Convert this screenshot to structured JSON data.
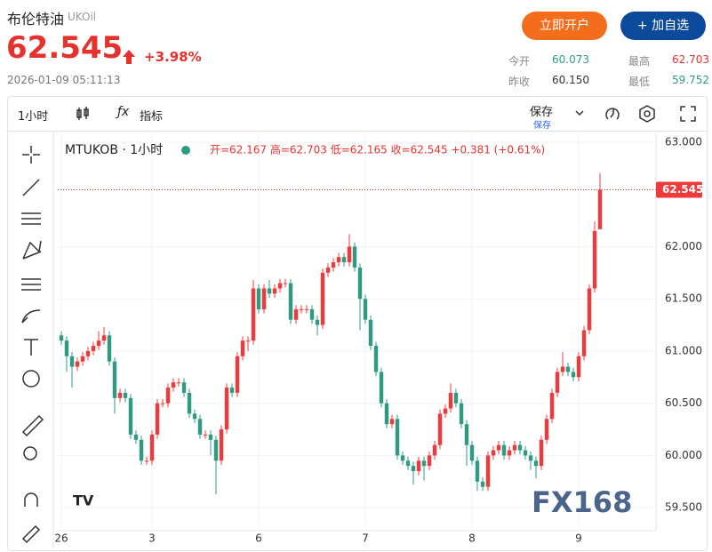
{
  "header": {
    "title": "布伦特油",
    "symbol": "UKOil",
    "price": "62.545",
    "change": "+3.98%",
    "time": "2026-01-09 05:11:13",
    "open_account": "立即开户",
    "add_watch": "加自选",
    "stats": [
      {
        "label": "今开",
        "value": "60.073"
      },
      {
        "label": "最高",
        "value": "62.703"
      },
      {
        "label": "昨收",
        "value": "60.150"
      },
      {
        "label": "最低",
        "value": "59.752"
      }
    ]
  },
  "toolbar": {
    "interval": "1小时",
    "indicators": "指标",
    "save": "保存",
    "save_sub": "保存"
  },
  "chart_data": {
    "type": "candlestick",
    "legend_title": "MTUKOB · 1小时",
    "legend_values": "开=62.167 高=62.703 低=62.165 收=62.545 +0.381 (+0.61%)",
    "watermark": "FX168",
    "up_color": "#f0393b",
    "down_color": "#2f9a84",
    "grid": true,
    "ylim": [
      59.28,
      63.085
    ],
    "yticks": [
      {
        "value": 59.5,
        "label": "59.500"
      },
      {
        "value": 60,
        "label": "60.000"
      },
      {
        "value": 60.5,
        "label": "60.500"
      },
      {
        "value": 61,
        "label": "61.000"
      },
      {
        "value": 61.5,
        "label": "61.500"
      },
      {
        "value": 62,
        "label": "62.000"
      },
      {
        "value": 63,
        "label": "63.000"
      }
    ],
    "categories": [
      "26",
      null,
      null,
      null,
      null,
      null,
      null,
      null,
      null,
      null,
      null,
      null,
      null,
      null,
      null,
      null,
      null,
      "3",
      null,
      null,
      null,
      null,
      null,
      null,
      null,
      null,
      null,
      null,
      null,
      null,
      null,
      null,
      null,
      null,
      null,
      null,
      null,
      "6",
      null,
      null,
      null,
      null,
      null,
      null,
      null,
      null,
      null,
      null,
      null,
      null,
      null,
      null,
      null,
      null,
      null,
      null,
      null,
      "7",
      null,
      null,
      null,
      null,
      null,
      null,
      null,
      null,
      null,
      null,
      null,
      null,
      null,
      null,
      null,
      null,
      null,
      null,
      null,
      "8",
      null,
      null,
      null,
      null,
      null,
      null,
      null,
      null,
      null,
      null,
      null,
      null,
      null,
      null,
      null,
      null,
      null,
      null,
      null,
      "9",
      null,
      null,
      null,
      null
    ],
    "open": [
      61.15,
      61.1,
      60.95,
      60.85,
      60.9,
      60.95,
      61.0,
      61.05,
      61.1,
      61.15,
      60.9,
      60.55,
      60.6,
      60.55,
      60.2,
      60.15,
      59.95,
      59.95,
      60.2,
      60.5,
      60.5,
      60.65,
      60.7,
      60.7,
      60.6,
      60.4,
      60.35,
      60.2,
      60.2,
      60.15,
      59.95,
      60.25,
      60.65,
      60.6,
      60.95,
      61.1,
      61.1,
      61.6,
      61.4,
      61.6,
      61.55,
      61.6,
      61.65,
      61.65,
      61.3,
      61.4,
      61.4,
      61.4,
      61.3,
      61.25,
      61.75,
      61.8,
      61.85,
      61.9,
      61.85,
      62.0,
      61.8,
      61.5,
      61.3,
      61.05,
      60.8,
      60.5,
      60.3,
      60.35,
      60.0,
      59.95,
      59.9,
      59.85,
      59.95,
      59.9,
      60.0,
      60.1,
      60.4,
      60.45,
      60.6,
      60.5,
      60.3,
      60.1,
      59.95,
      59.75,
      59.7,
      60.0,
      60.05,
      60.1,
      60.0,
      60.05,
      60.1,
      60.05,
      60.0,
      59.95,
      59.9,
      60.15,
      60.35,
      60.6,
      60.8,
      60.85,
      60.8,
      60.75,
      60.95,
      61.2,
      61.6,
      62.167
    ],
    "high": [
      61.19,
      61.14,
      60.99,
      60.94,
      60.99,
      61.04,
      61.09,
      61.19,
      61.23,
      61.19,
      60.94,
      60.64,
      60.64,
      60.59,
      60.24,
      60.19,
      59.99,
      60.24,
      60.54,
      60.54,
      60.69,
      60.74,
      60.74,
      60.74,
      60.64,
      60.44,
      60.39,
      60.24,
      60.24,
      60.19,
      60.29,
      60.69,
      60.69,
      60.99,
      61.14,
      61.14,
      61.68,
      61.64,
      61.64,
      61.68,
      61.64,
      61.69,
      61.69,
      61.69,
      61.44,
      61.44,
      61.44,
      61.44,
      61.34,
      61.79,
      61.84,
      61.89,
      61.94,
      61.94,
      62.12,
      62.04,
      61.84,
      61.54,
      61.34,
      61.09,
      60.84,
      60.54,
      60.39,
      60.39,
      60.04,
      59.99,
      59.94,
      59.99,
      59.99,
      60.04,
      60.14,
      60.44,
      60.49,
      60.69,
      60.64,
      60.54,
      60.34,
      60.14,
      59.99,
      59.79,
      60.04,
      60.09,
      60.14,
      60.14,
      60.09,
      60.14,
      60.14,
      60.09,
      60.04,
      59.99,
      60.19,
      60.39,
      60.64,
      60.84,
      60.99,
      60.89,
      60.84,
      60.99,
      61.24,
      61.64,
      62.24,
      62.703
    ],
    "low": [
      61.06,
      60.8,
      60.65,
      60.81,
      60.86,
      60.91,
      60.96,
      61.01,
      61.06,
      60.86,
      60.4,
      60.51,
      60.51,
      60.16,
      60.11,
      59.91,
      59.91,
      59.91,
      60.16,
      60.46,
      60.46,
      60.61,
      60.66,
      60.56,
      60.36,
      60.31,
      60.16,
      60.16,
      60.0,
      59.63,
      59.91,
      60.21,
      60.56,
      60.56,
      60.91,
      61.0,
      61.06,
      61.36,
      61.36,
      61.51,
      61.51,
      61.56,
      61.61,
      61.26,
      61.26,
      61.36,
      61.36,
      61.26,
      61.15,
      61.21,
      61.71,
      61.76,
      61.81,
      61.81,
      61.81,
      61.76,
      61.2,
      61.26,
      61.01,
      60.76,
      60.46,
      60.26,
      60.26,
      59.96,
      59.91,
      59.86,
      59.72,
      59.81,
      59.76,
      59.86,
      59.96,
      60.06,
      60.36,
      60.41,
      60.46,
      60.26,
      59.9,
      59.91,
      59.66,
      59.66,
      59.66,
      59.96,
      60.01,
      59.96,
      59.96,
      60.01,
      60.01,
      59.96,
      59.86,
      59.78,
      59.86,
      60.11,
      60.31,
      60.56,
      60.76,
      60.76,
      60.71,
      60.71,
      60.91,
      61.16,
      61.56,
      62.165
    ],
    "close": [
      61.1,
      60.95,
      60.85,
      60.9,
      60.95,
      61.0,
      61.05,
      61.1,
      61.15,
      60.9,
      60.55,
      60.6,
      60.55,
      60.2,
      60.15,
      59.95,
      59.95,
      60.2,
      60.5,
      60.5,
      60.65,
      60.7,
      60.7,
      60.6,
      60.4,
      60.35,
      60.2,
      60.2,
      60.15,
      59.95,
      60.25,
      60.65,
      60.6,
      60.95,
      61.1,
      61.1,
      61.6,
      61.4,
      61.6,
      61.55,
      61.6,
      61.65,
      61.65,
      61.3,
      61.4,
      61.4,
      61.4,
      61.3,
      61.25,
      61.75,
      61.8,
      61.85,
      61.9,
      61.85,
      62.0,
      61.8,
      61.5,
      61.3,
      61.05,
      60.8,
      60.5,
      60.3,
      60.35,
      60.0,
      59.95,
      59.9,
      59.85,
      59.95,
      59.9,
      60.0,
      60.1,
      60.4,
      60.45,
      60.6,
      60.5,
      60.3,
      60.1,
      59.95,
      59.75,
      59.7,
      60.0,
      60.05,
      60.1,
      60.0,
      60.05,
      60.1,
      60.05,
      60.0,
      59.95,
      59.9,
      60.15,
      60.35,
      60.6,
      60.8,
      60.85,
      60.8,
      60.75,
      60.95,
      61.2,
      61.6,
      62.15,
      62.545
    ]
  }
}
